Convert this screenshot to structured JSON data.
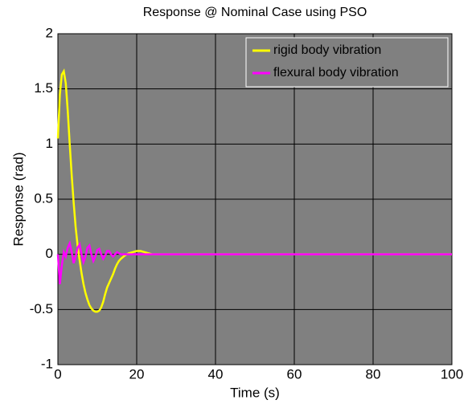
{
  "chart_data": {
    "type": "line",
    "title": "Response @ Nominal Case using PSO",
    "xlabel": "Time (s)",
    "ylabel": "Response (rad)",
    "x": [
      0,
      0.5,
      1,
      1.5,
      2,
      2.5,
      3,
      3.5,
      4,
      4.5,
      5,
      5.5,
      6,
      6.5,
      7,
      7.5,
      8,
      8.5,
      9,
      9.5,
      10,
      10.5,
      11,
      11.5,
      12,
      12.5,
      13,
      13.5,
      14,
      14.5,
      15,
      15.5,
      16,
      17,
      18,
      19,
      20,
      21,
      22,
      23,
      24,
      26,
      100
    ],
    "series": [
      {
        "name": "rigid body vibration",
        "color": "#ffff00",
        "values": [
          1.05,
          1.45,
          1.63,
          1.66,
          1.55,
          1.3,
          1.0,
          0.72,
          0.47,
          0.25,
          0.08,
          -0.05,
          -0.17,
          -0.27,
          -0.35,
          -0.41,
          -0.46,
          -0.49,
          -0.51,
          -0.52,
          -0.52,
          -0.51,
          -0.48,
          -0.43,
          -0.36,
          -0.3,
          -0.26,
          -0.22,
          -0.18,
          -0.13,
          -0.09,
          -0.06,
          -0.04,
          -0.01,
          0.01,
          0.02,
          0.03,
          0.03,
          0.02,
          0.01,
          0,
          0,
          0
        ]
      },
      {
        "name": "flexural body vibration",
        "color": "#ff00ff",
        "values": [
          0,
          -0.27,
          -0.1,
          0.02,
          -0.02,
          0.06,
          0.1,
          0.02,
          -0.08,
          -0.02,
          0.06,
          0.09,
          0,
          -0.07,
          -0.02,
          0.06,
          0.08,
          0,
          -0.06,
          -0.02,
          0.04,
          0.05,
          0,
          -0.04,
          -0.01,
          0.03,
          0.03,
          0,
          -0.02,
          0,
          0.02,
          0.01,
          0,
          0,
          0,
          0,
          0,
          0,
          0,
          0,
          0,
          0,
          0
        ]
      }
    ],
    "xlim": [
      0,
      100
    ],
    "xticks": [
      0,
      20,
      40,
      60,
      80,
      100
    ],
    "ylim": [
      -1,
      2
    ],
    "yticks": [
      -1,
      -0.5,
      0,
      0.5,
      1,
      1.5,
      2
    ],
    "grid": true,
    "legend": "upper right",
    "background": "#808080"
  }
}
